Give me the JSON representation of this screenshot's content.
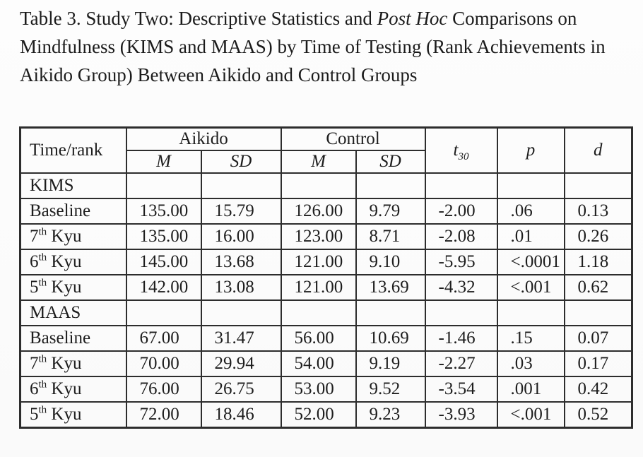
{
  "title": {
    "parts": [
      {
        "t": "Table 3. Study Two: Descriptive Statistics and "
      },
      {
        "t": "Post Hoc",
        "i": true
      },
      {
        "t": " Comparisons on"
      },
      {
        "br": true
      },
      {
        "t": "Mindfulness (KIMS and MAAS) by Time of Testing (Rank Achievements in"
      },
      {
        "br": true
      },
      {
        "t": "Aikido Group) Between Aikido and Control Groups"
      }
    ]
  },
  "table": {
    "header": {
      "time_rank": "Time/rank",
      "aikido": "Aikido",
      "control": "Control",
      "m": "M",
      "sd": "SD",
      "t": [
        {
          "t": "t",
          "i": true
        },
        {
          "t": "30",
          "sub": true,
          "i": true
        }
      ],
      "p": "p",
      "d": "d"
    },
    "rows": [
      {
        "type": "section",
        "label": [
          {
            "t": "KIMS"
          }
        ],
        "values": [
          "",
          "",
          "",
          "",
          "",
          "",
          ""
        ]
      },
      {
        "type": "data",
        "label": [
          {
            "t": "Baseline"
          }
        ],
        "values": [
          "135.00",
          "15.79",
          "126.00",
          "9.79",
          "-2.00",
          ".06",
          "0.13"
        ]
      },
      {
        "type": "data",
        "label": [
          {
            "t": "7"
          },
          {
            "t": "th",
            "sup": true
          },
          {
            "t": " Kyu"
          }
        ],
        "values": [
          "135.00",
          "16.00",
          "123.00",
          "8.71",
          "-2.08",
          ".01",
          "0.26"
        ]
      },
      {
        "type": "data",
        "label": [
          {
            "t": "6"
          },
          {
            "t": "th",
            "sup": true
          },
          {
            "t": " Kyu"
          }
        ],
        "values": [
          "145.00",
          "13.68",
          "121.00",
          "9.10",
          "-5.95",
          "<.0001",
          "1.18"
        ]
      },
      {
        "type": "data",
        "label": [
          {
            "t": "5"
          },
          {
            "t": "th",
            "sup": true
          },
          {
            "t": " Kyu"
          }
        ],
        "values": [
          "142.00",
          "13.08",
          "121.00",
          "13.69",
          "-4.32",
          "<.001",
          "0.62"
        ]
      },
      {
        "type": "section",
        "label": [
          {
            "t": "MAAS"
          }
        ],
        "values": [
          "",
          "",
          "",
          "",
          "",
          "",
          ""
        ]
      },
      {
        "type": "data",
        "label": [
          {
            "t": "Baseline"
          }
        ],
        "values": [
          "67.00",
          "31.47",
          "56.00",
          "10.69",
          "-1.46",
          ".15",
          "0.07"
        ]
      },
      {
        "type": "data",
        "label": [
          {
            "t": "7"
          },
          {
            "t": "th",
            "sup": true
          },
          {
            "t": " Kyu"
          }
        ],
        "values": [
          "70.00",
          "29.94",
          "54.00",
          "9.19",
          "-2.27",
          ".03",
          "0.17"
        ]
      },
      {
        "type": "data",
        "label": [
          {
            "t": "6"
          },
          {
            "t": "th",
            "sup": true
          },
          {
            "t": " Kyu"
          }
        ],
        "values": [
          "76.00",
          "26.75",
          "53.00",
          "9.52",
          "-3.54",
          ".001",
          "0.42"
        ]
      },
      {
        "type": "data",
        "label": [
          {
            "t": "5"
          },
          {
            "t": "th",
            "sup": true
          },
          {
            "t": " Kyu"
          }
        ],
        "values": [
          "72.00",
          "18.46",
          "52.00",
          "9.23",
          "-3.93",
          "<.001",
          "0.52"
        ]
      }
    ]
  },
  "colors": {
    "text": "#1d1d1d",
    "border": "#2d2d2d",
    "background": "#fcfcfc"
  }
}
